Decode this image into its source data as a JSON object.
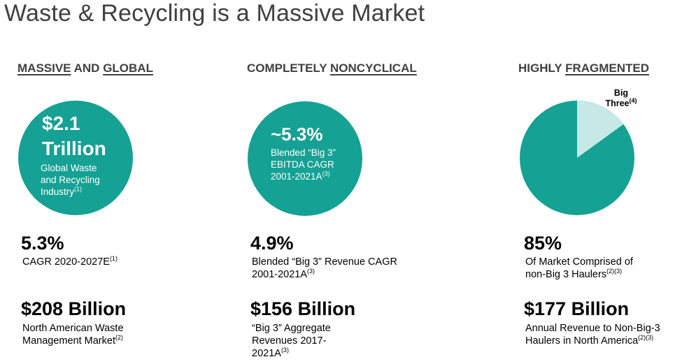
{
  "title": "Waste & Recycling is a Massive Market",
  "columns": [
    {
      "heading_parts": [
        "MASSIVE",
        " AND ",
        "GLOBAL"
      ],
      "circle": {
        "big_line1": "$2.1",
        "big_line2": "Trillion",
        "small_lines": [
          "Global Waste",
          "and Recycling",
          "Industry"
        ],
        "footnote": "(1)"
      },
      "stat1": {
        "value": "5.3%",
        "desc": "CAGR 2020-2027E",
        "footnote": "(1)"
      },
      "stat2": {
        "value": "$208 Billion",
        "desc_line1": "North American Waste",
        "desc_line2": "Management Market",
        "footnote": "(2)"
      }
    },
    {
      "heading_parts": [
        "COMPLETELY ",
        "NONCYCLICAL"
      ],
      "circle": {
        "big_line1": "~5.3%",
        "small_lines": [
          "Blended “Big 3”",
          "EBITDA CAGR",
          "2001-2021A"
        ],
        "footnote": "(3)"
      },
      "stat1": {
        "value": "4.9%",
        "desc_line1": "Blended “Big 3” Revenue CAGR",
        "desc_line2": "2001-2021A",
        "footnote": "(3)"
      },
      "stat2": {
        "value": "$156 Billion",
        "desc_line1": "“Big 3” Aggregate",
        "desc_line2": "Revenues 2017-",
        "desc_line3": "2021A",
        "footnote": "(3)"
      }
    },
    {
      "heading_parts": [
        "HIGHLY ",
        "FRAGMENTED"
      ],
      "pie": {
        "label_line1": "Big",
        "label_line2": "Three",
        "label_footnote": "(4)",
        "big_three_share": 0.15,
        "color_main": "#15a193",
        "color_slice": "#c6e9e5"
      },
      "stat1": {
        "value": "85%",
        "desc_line1": "Of Market Comprised of",
        "desc_line2": "non-Big 3 Haulers",
        "footnote": "(2)(3)"
      },
      "stat2": {
        "value": "$177 Billion",
        "desc_line1": "Annual Revenue to Non-Big-3",
        "desc_line2": "Haulers in North America",
        "footnote": "(2)(3)"
      }
    }
  ]
}
